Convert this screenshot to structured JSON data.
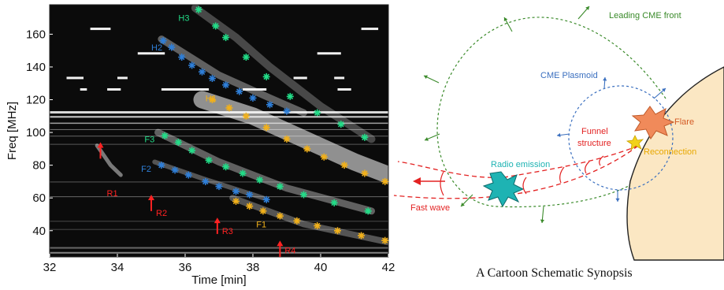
{
  "spectrogram": {
    "ylabel": "Freq [MHz]",
    "xlabel": "Time [min]",
    "xticks": [
      "32",
      "34",
      "36",
      "38",
      "40",
      "42"
    ],
    "yticks": [
      "40",
      "60",
      "80",
      "100",
      "120",
      "140",
      "160"
    ],
    "xlim": [
      32,
      42
    ],
    "ylim": [
      24,
      178
    ],
    "tracks": [
      {
        "label": "H3",
        "color": "#22dd88",
        "marker": "star",
        "points": [
          [
            36.4,
            175
          ],
          [
            36.9,
            165
          ],
          [
            37.2,
            158
          ],
          [
            37.8,
            146
          ],
          [
            38.4,
            134
          ],
          [
            39.1,
            122
          ],
          [
            39.9,
            112
          ],
          [
            40.6,
            105
          ],
          [
            41.3,
            97
          ]
        ]
      },
      {
        "label": "H2",
        "color": "#2f7fd8",
        "marker": "star",
        "points": [
          [
            35.35,
            156
          ],
          [
            35.6,
            152
          ],
          [
            35.9,
            146
          ],
          [
            36.2,
            141
          ],
          [
            36.5,
            137
          ],
          [
            36.8,
            133
          ],
          [
            37.2,
            129
          ],
          [
            37.6,
            125
          ],
          [
            38.0,
            121
          ],
          [
            38.5,
            117
          ],
          [
            39.0,
            113
          ]
        ]
      },
      {
        "label": "H1",
        "color": "#f2b11a",
        "marker": "star",
        "points": [
          [
            36.8,
            120
          ],
          [
            37.3,
            115
          ],
          [
            37.8,
            110
          ],
          [
            38.4,
            103
          ],
          [
            39.0,
            96
          ],
          [
            39.6,
            90
          ],
          [
            40.1,
            85
          ],
          [
            40.7,
            80
          ],
          [
            41.3,
            75
          ],
          [
            41.9,
            70
          ]
        ]
      },
      {
        "label": "F3",
        "color": "#22dd88",
        "marker": "star",
        "points": [
          [
            35.4,
            98
          ],
          [
            35.8,
            94
          ],
          [
            36.2,
            89
          ],
          [
            36.7,
            83
          ],
          [
            37.2,
            79
          ],
          [
            37.7,
            75
          ],
          [
            38.2,
            71
          ],
          [
            38.8,
            67
          ],
          [
            39.5,
            62
          ],
          [
            40.4,
            57
          ],
          [
            41.4,
            52
          ]
        ]
      },
      {
        "label": "F2",
        "color": "#2f7fd8",
        "marker": "star",
        "points": [
          [
            35.3,
            80
          ],
          [
            35.7,
            77
          ],
          [
            36.1,
            74
          ],
          [
            36.6,
            70
          ],
          [
            37.0,
            67
          ],
          [
            37.5,
            64
          ],
          [
            37.9,
            62
          ],
          [
            38.4,
            59
          ]
        ]
      },
      {
        "label": "F1",
        "color": "#f2b11a",
        "marker": "star",
        "points": [
          [
            37.5,
            58
          ],
          [
            37.9,
            55
          ],
          [
            38.3,
            52
          ],
          [
            38.8,
            49
          ],
          [
            39.3,
            46
          ],
          [
            39.9,
            43
          ],
          [
            40.5,
            40
          ],
          [
            41.2,
            37
          ],
          [
            41.9,
            34
          ]
        ]
      }
    ],
    "radio_arrows": [
      {
        "label": "R1",
        "time": 33.5
      },
      {
        "label": "R2",
        "time": 35.0
      },
      {
        "label": "R3",
        "time": 36.95
      },
      {
        "label": "R4",
        "time": 38.8
      }
    ]
  },
  "schematic": {
    "labels": {
      "leading_front": "Leading CME front",
      "plasmoid": "CME Plasmoid",
      "funnel": "Funnel\nstructure",
      "flare": "Flare",
      "reconnection": "Reconnection",
      "radio_emission": "Radio emission",
      "fast_wave": "Fast wave"
    },
    "caption": "A Cartoon Schematic Synopsis",
    "colors": {
      "front": "#3a8a2a",
      "plasmoid": "#3a6fbf",
      "funnel": "#e32222",
      "flare": "#f08a5a",
      "reconnection": "#f2d21a",
      "radio": "#1eb3b3",
      "sun": "#fbe7c3"
    }
  }
}
